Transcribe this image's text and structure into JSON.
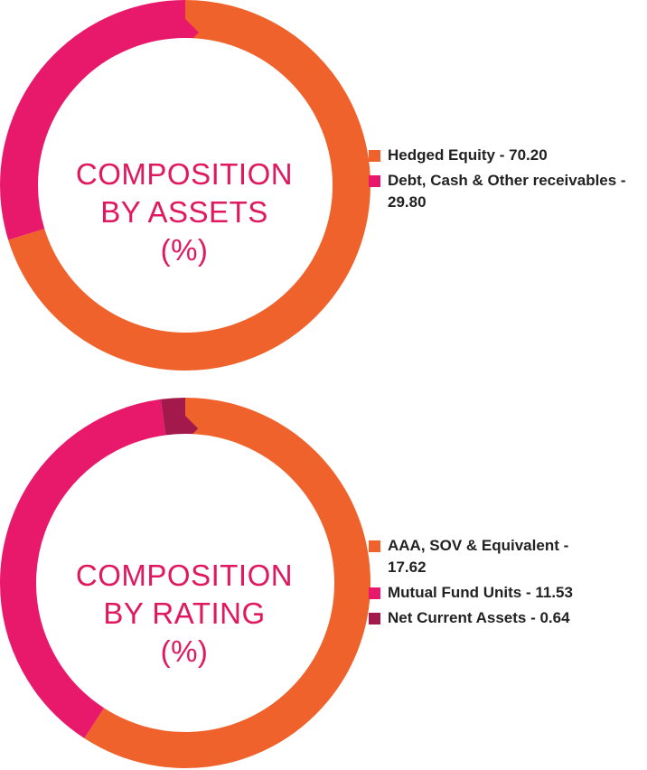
{
  "chart_data": [
    {
      "type": "pie",
      "title": "COMPOSITION BY ASSETS (%)",
      "title_lines": [
        "COMPOSITION",
        "BY ASSETS",
        "(%)"
      ],
      "categories": [
        "Hedged Equity",
        "Debt, Cash & Other receivables"
      ],
      "values": [
        70.2,
        29.8
      ],
      "legend": [
        "Hedged Equity - 70.20",
        "Debt, Cash & Other receivables - 29.80"
      ],
      "colors": [
        "#f0622b",
        "#e8186a"
      ],
      "legend_placement": "right"
    },
    {
      "type": "pie",
      "title": "COMPOSITION BY RATING (%)",
      "title_lines": [
        "COMPOSITION",
        "BY RATING",
        "(%)"
      ],
      "categories": [
        "AAA, SOV & Equivalent",
        "Mutual Fund Units",
        "Net Current Assets"
      ],
      "values": [
        17.62,
        11.53,
        0.64
      ],
      "legend": [
        "AAA, SOV & Equivalent - 17.62",
        "Mutual Fund Units - 11.53",
        "Net Current Assets - 0.64"
      ],
      "colors": [
        "#f0622b",
        "#e8186a",
        "#a3194c"
      ],
      "legend_placement": "right"
    }
  ]
}
